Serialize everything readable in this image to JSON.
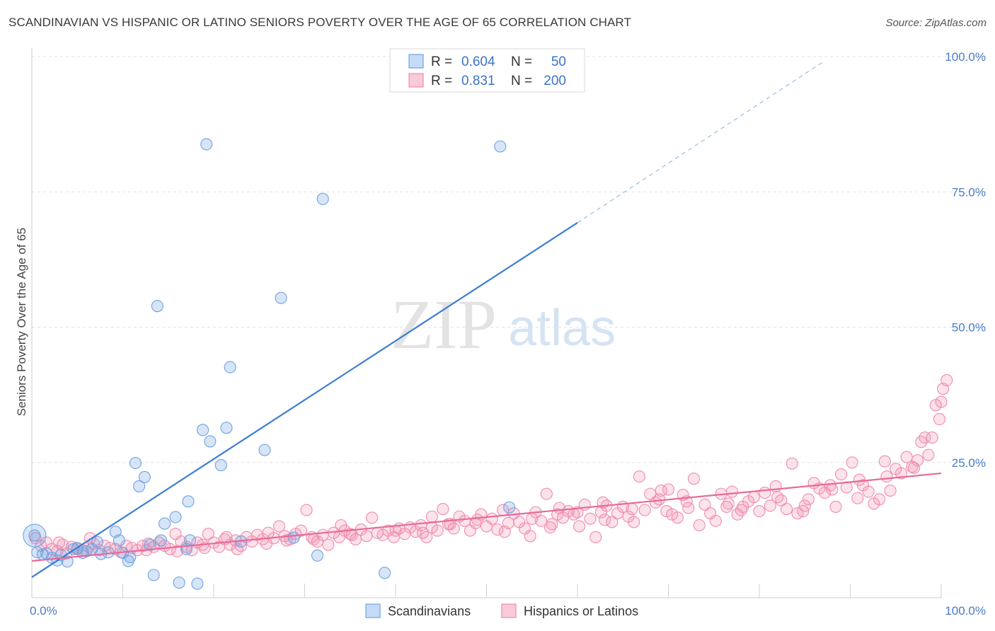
{
  "title": "SCANDINAVIAN VS HISPANIC OR LATINO SENIORS POVERTY OVER THE AGE OF 65 CORRELATION CHART",
  "source": "Source: ZipAtlas.com",
  "watermark": {
    "zip": "ZIP",
    "atlas": "atlas"
  },
  "legend": {
    "rows": [
      {
        "r_label": "R =",
        "r_value": "0.604",
        "n_label": "N =",
        "n_value": "50",
        "color": "#6fa3e3"
      },
      {
        "r_label": "R =",
        "r_value": "0.831",
        "n_label": "N =",
        "n_value": "200",
        "color": "#f08cae"
      }
    ]
  },
  "bottom_legend": [
    {
      "label": "Scandinavians",
      "color": "#6fa3e3"
    },
    {
      "label": "Hispanics or Latinos",
      "color": "#f08cae"
    }
  ],
  "chart_data": {
    "type": "scatter",
    "title": "SCANDINAVIAN VS HISPANIC OR LATINO SENIORS POVERTY OVER THE AGE OF 65 CORRELATION CHART",
    "xlabel": "",
    "ylabel": "Seniors Poverty Over the Age of 65",
    "xlim": [
      0,
      100
    ],
    "ylim": [
      0,
      100
    ],
    "x_tick_labels": [
      "0.0%",
      "100.0%"
    ],
    "y_tick_labels": [
      "25.0%",
      "50.0%",
      "75.0%",
      "100.0%"
    ],
    "y_ticks": [
      25,
      50,
      75,
      100
    ],
    "grid": true,
    "series": [
      {
        "name": "Scandinavians",
        "color": "#6fa3e3",
        "trend": {
          "x0": 0,
          "y0": 3.8,
          "x1": 60,
          "y1": 69.3,
          "dashed_to_x": 87,
          "dashed_to_y": 99
        },
        "points": [
          [
            0.3,
            11.5
          ],
          [
            0.6,
            8.4
          ],
          [
            1.2,
            8.0
          ],
          [
            1.6,
            8.2
          ],
          [
            2.2,
            7.4
          ],
          [
            2.8,
            6.9
          ],
          [
            3.2,
            7.9
          ],
          [
            3.9,
            6.7
          ],
          [
            4.6,
            9.0
          ],
          [
            5.0,
            9.2
          ],
          [
            5.6,
            8.3
          ],
          [
            6.0,
            8.6
          ],
          [
            6.6,
            9.0
          ],
          [
            7.2,
            10.3
          ],
          [
            7.6,
            8.1
          ],
          [
            8.4,
            8.4
          ],
          [
            9.2,
            12.2
          ],
          [
            9.6,
            10.6
          ],
          [
            10.0,
            8.3
          ],
          [
            10.6,
            6.8
          ],
          [
            10.8,
            7.5
          ],
          [
            11.4,
            24.9
          ],
          [
            11.8,
            20.6
          ],
          [
            12.4,
            22.3
          ],
          [
            13.0,
            9.8
          ],
          [
            13.4,
            4.2
          ],
          [
            13.8,
            53.9
          ],
          [
            14.2,
            10.6
          ],
          [
            14.6,
            13.7
          ],
          [
            15.8,
            14.9
          ],
          [
            16.2,
            2.8
          ],
          [
            17.2,
            17.8
          ],
          [
            17.4,
            10.6
          ],
          [
            18.2,
            2.6
          ],
          [
            18.8,
            31.0
          ],
          [
            19.2,
            83.8
          ],
          [
            19.6,
            28.9
          ],
          [
            20.8,
            24.5
          ],
          [
            21.4,
            31.4
          ],
          [
            21.8,
            42.6
          ],
          [
            25.6,
            27.3
          ],
          [
            27.4,
            55.4
          ],
          [
            31.4,
            7.8
          ],
          [
            32.0,
            73.7
          ],
          [
            38.8,
            4.6
          ],
          [
            28.8,
            11.1
          ],
          [
            51.5,
            83.4
          ],
          [
            52.5,
            16.7
          ],
          [
            17.0,
            9.0
          ],
          [
            23.0,
            10.4
          ]
        ]
      },
      {
        "name": "Hispanics or Latinos",
        "color": "#f08cae",
        "trend": {
          "x0": 0,
          "y0": 6.8,
          "x1": 100,
          "y1": 23.0
        },
        "points": [
          [
            0.4,
            11.0
          ],
          [
            1.0,
            9.6
          ],
          [
            1.6,
            10.2
          ],
          [
            2.2,
            9.0
          ],
          [
            2.8,
            8.6
          ],
          [
            3.4,
            9.8
          ],
          [
            3.8,
            8.2
          ],
          [
            4.4,
            9.4
          ],
          [
            5.0,
            9.0
          ],
          [
            5.6,
            8.8
          ],
          [
            6.2,
            9.4
          ],
          [
            6.8,
            10.0
          ],
          [
            7.4,
            8.8
          ],
          [
            8.0,
            9.6
          ],
          [
            8.6,
            9.2
          ],
          [
            9.2,
            9.0
          ],
          [
            9.8,
            8.4
          ],
          [
            10.4,
            9.6
          ],
          [
            11.0,
            9.2
          ],
          [
            11.6,
            8.8
          ],
          [
            12.2,
            9.6
          ],
          [
            12.8,
            10.0
          ],
          [
            13.4,
            9.4
          ],
          [
            14.0,
            10.2
          ],
          [
            14.6,
            9.6
          ],
          [
            15.2,
            9.0
          ],
          [
            15.8,
            11.8
          ],
          [
            16.4,
            10.4
          ],
          [
            17.0,
            9.4
          ],
          [
            17.6,
            8.8
          ],
          [
            18.2,
            10.2
          ],
          [
            18.8,
            9.8
          ],
          [
            19.4,
            11.8
          ],
          [
            20.0,
            10.2
          ],
          [
            20.6,
            9.4
          ],
          [
            21.2,
            10.8
          ],
          [
            21.8,
            9.8
          ],
          [
            22.4,
            10.6
          ],
          [
            23.0,
            9.6
          ],
          [
            23.6,
            11.2
          ],
          [
            24.2,
            10.4
          ],
          [
            24.8,
            11.6
          ],
          [
            25.4,
            10.8
          ],
          [
            26.0,
            12.0
          ],
          [
            26.6,
            11.0
          ],
          [
            27.2,
            13.2
          ],
          [
            27.8,
            11.4
          ],
          [
            28.4,
            10.8
          ],
          [
            29.0,
            11.8
          ],
          [
            29.6,
            12.4
          ],
          [
            30.2,
            16.2
          ],
          [
            30.8,
            11.2
          ],
          [
            31.4,
            10.4
          ],
          [
            32.0,
            11.6
          ],
          [
            32.6,
            9.8
          ],
          [
            33.2,
            12.0
          ],
          [
            33.8,
            11.2
          ],
          [
            34.4,
            12.4
          ],
          [
            35.0,
            11.8
          ],
          [
            35.6,
            10.8
          ],
          [
            36.2,
            12.6
          ],
          [
            36.8,
            11.4
          ],
          [
            37.4,
            14.8
          ],
          [
            38.0,
            12.0
          ],
          [
            38.6,
            11.6
          ],
          [
            39.2,
            12.4
          ],
          [
            39.8,
            11.2
          ],
          [
            40.4,
            12.8
          ],
          [
            41.0,
            11.8
          ],
          [
            41.6,
            13.0
          ],
          [
            42.2,
            12.2
          ],
          [
            42.8,
            13.4
          ],
          [
            43.4,
            11.2
          ],
          [
            44.0,
            13.0
          ],
          [
            44.6,
            12.4
          ],
          [
            45.2,
            16.4
          ],
          [
            45.8,
            13.6
          ],
          [
            46.4,
            12.8
          ],
          [
            47.0,
            15.0
          ],
          [
            47.6,
            14.2
          ],
          [
            48.2,
            12.4
          ],
          [
            48.8,
            13.8
          ],
          [
            49.4,
            15.4
          ],
          [
            50.0,
            13.2
          ],
          [
            50.6,
            14.6
          ],
          [
            51.2,
            12.6
          ],
          [
            51.8,
            16.2
          ],
          [
            52.4,
            13.8
          ],
          [
            53.0,
            15.6
          ],
          [
            53.6,
            14.0
          ],
          [
            54.2,
            12.8
          ],
          [
            54.8,
            11.4
          ],
          [
            55.4,
            15.8
          ],
          [
            56.0,
            14.2
          ],
          [
            56.6,
            19.2
          ],
          [
            57.2,
            13.6
          ],
          [
            57.8,
            15.4
          ],
          [
            58.4,
            14.8
          ],
          [
            59.0,
            16.0
          ],
          [
            59.6,
            15.4
          ],
          [
            60.2,
            13.2
          ],
          [
            60.8,
            17.2
          ],
          [
            61.4,
            14.6
          ],
          [
            62.0,
            11.2
          ],
          [
            62.6,
            15.8
          ],
          [
            63.2,
            17.0
          ],
          [
            63.8,
            14.0
          ],
          [
            64.4,
            15.6
          ],
          [
            65.0,
            16.8
          ],
          [
            65.6,
            15.0
          ],
          [
            66.2,
            14.0
          ],
          [
            66.8,
            22.4
          ],
          [
            67.4,
            16.2
          ],
          [
            68.0,
            19.2
          ],
          [
            68.6,
            17.6
          ],
          [
            69.2,
            19.8
          ],
          [
            69.8,
            16.0
          ],
          [
            70.4,
            15.4
          ],
          [
            71.0,
            14.8
          ],
          [
            71.6,
            19.0
          ],
          [
            72.2,
            16.6
          ],
          [
            72.8,
            22.0
          ],
          [
            73.4,
            13.4
          ],
          [
            74.0,
            17.2
          ],
          [
            74.6,
            15.6
          ],
          [
            75.2,
            14.2
          ],
          [
            75.8,
            19.2
          ],
          [
            76.4,
            16.8
          ],
          [
            77.0,
            19.6
          ],
          [
            77.6,
            15.4
          ],
          [
            78.2,
            16.8
          ],
          [
            78.8,
            17.8
          ],
          [
            79.4,
            18.6
          ],
          [
            80.0,
            16.0
          ],
          [
            80.6,
            19.4
          ],
          [
            81.2,
            17.0
          ],
          [
            81.8,
            20.6
          ],
          [
            82.4,
            18.0
          ],
          [
            83.0,
            16.4
          ],
          [
            83.6,
            24.8
          ],
          [
            84.2,
            15.6
          ],
          [
            84.8,
            16.0
          ],
          [
            85.4,
            18.2
          ],
          [
            86.0,
            21.2
          ],
          [
            86.6,
            20.2
          ],
          [
            87.2,
            19.4
          ],
          [
            87.8,
            20.8
          ],
          [
            88.4,
            16.8
          ],
          [
            89.0,
            22.8
          ],
          [
            89.6,
            20.4
          ],
          [
            90.2,
            25.0
          ],
          [
            90.8,
            18.4
          ],
          [
            91.4,
            20.8
          ],
          [
            92.0,
            19.6
          ],
          [
            92.6,
            17.4
          ],
          [
            93.2,
            18.2
          ],
          [
            93.8,
            25.2
          ],
          [
            94.4,
            19.8
          ],
          [
            95.0,
            23.8
          ],
          [
            95.6,
            23.0
          ],
          [
            96.2,
            26.0
          ],
          [
            96.8,
            24.2
          ],
          [
            97.4,
            25.4
          ],
          [
            97.8,
            28.8
          ],
          [
            98.2,
            29.6
          ],
          [
            98.6,
            26.4
          ],
          [
            99.0,
            29.6
          ],
          [
            99.4,
            35.6
          ],
          [
            99.8,
            33.0
          ],
          [
            100.2,
            38.6
          ],
          [
            100.6,
            40.2
          ],
          [
            100.0,
            36.2
          ],
          [
            21.4,
            11.2
          ],
          [
            34.0,
            13.4
          ],
          [
            44.0,
            15.0
          ],
          [
            58.0,
            16.6
          ],
          [
            62.8,
            17.6
          ],
          [
            70.0,
            20.0
          ],
          [
            76.6,
            17.4
          ],
          [
            82.0,
            18.6
          ],
          [
            88.0,
            20.0
          ],
          [
            3.0,
            10.2
          ],
          [
            6.4,
            11.0
          ],
          [
            12.6,
            8.8
          ],
          [
            16.0,
            8.6
          ],
          [
            19.0,
            9.2
          ],
          [
            22.6,
            9.0
          ],
          [
            25.8,
            10.0
          ],
          [
            28.0,
            10.6
          ],
          [
            31.0,
            10.8
          ],
          [
            35.2,
            11.6
          ],
          [
            40.0,
            12.4
          ],
          [
            43.0,
            12.0
          ],
          [
            46.0,
            13.6
          ],
          [
            49.0,
            14.4
          ],
          [
            52.0,
            12.2
          ],
          [
            55.0,
            14.6
          ],
          [
            57.0,
            13.0
          ],
          [
            60.0,
            15.8
          ],
          [
            63.0,
            14.4
          ],
          [
            66.0,
            16.4
          ],
          [
            69.0,
            18.2
          ],
          [
            72.0,
            17.8
          ],
          [
            78.0,
            16.2
          ],
          [
            85.0,
            17.0
          ],
          [
            91.0,
            21.8
          ],
          [
            94.0,
            22.4
          ],
          [
            97.0,
            24.0
          ]
        ]
      }
    ]
  }
}
